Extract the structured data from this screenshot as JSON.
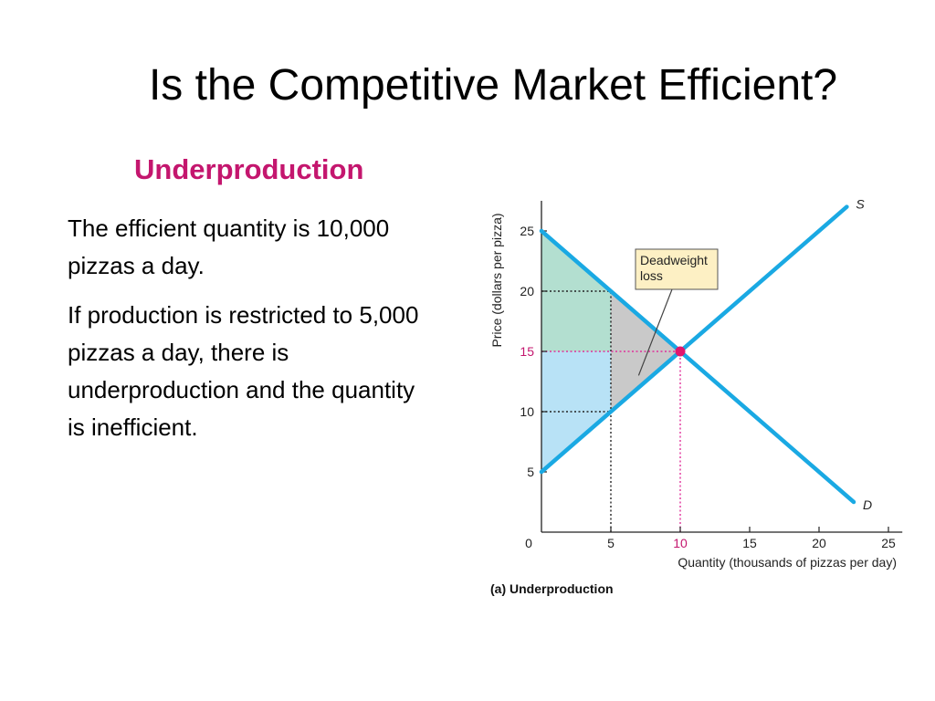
{
  "slide": {
    "title": "Is the Competitive Market Efficient?",
    "subtitle": "Underproduction",
    "paragraphs": [
      "The efficient quantity is 10,000 pizzas a day.",
      "If production is restricted to 5,000 pizzas a day, there is underproduction and the quantity is inefficient."
    ]
  },
  "chart_data": {
    "type": "line",
    "caption": "(a) Underproduction",
    "xlabel": "Quantity (thousands of pizzas per day)",
    "ylabel": "Price (dollars per pizza)",
    "xlim": [
      0,
      26
    ],
    "ylim": [
      0,
      27.5
    ],
    "x_ticks": [
      0,
      5,
      10,
      15,
      20,
      25
    ],
    "y_ticks": [
      5,
      10,
      15,
      20,
      25
    ],
    "highlight_tick": {
      "x": 10,
      "y": 15
    },
    "series": [
      {
        "name": "S",
        "points": [
          [
            0,
            5
          ],
          [
            22,
            27
          ]
        ]
      },
      {
        "name": "D",
        "points": [
          [
            0,
            25
          ],
          [
            22.5,
            2.5
          ]
        ]
      }
    ],
    "equilibrium": {
      "x": 10,
      "y": 15
    },
    "restricted_quantity": 5,
    "guides": [
      {
        "from": [
          0,
          20
        ],
        "to": [
          5,
          20
        ],
        "style": "dotted",
        "color": "#222222"
      },
      {
        "from": [
          0,
          10
        ],
        "to": [
          5,
          10
        ],
        "style": "dotted",
        "color": "#222222"
      },
      {
        "from": [
          5,
          0
        ],
        "to": [
          5,
          20
        ],
        "style": "dotted",
        "color": "#222222"
      },
      {
        "from": [
          0,
          15
        ],
        "to": [
          10,
          15
        ],
        "style": "dotted",
        "color": "#e0309a"
      },
      {
        "from": [
          10,
          0
        ],
        "to": [
          10,
          15
        ],
        "style": "dotted",
        "color": "#e0309a"
      }
    ],
    "regions": [
      {
        "name": "consumer-surplus",
        "color": "#b3dfd0",
        "points": [
          [
            0,
            25
          ],
          [
            5,
            20
          ],
          [
            0,
            20
          ]
        ]
      },
      {
        "name": "consumer-surplus",
        "color": "#b3dfd0",
        "points": [
          [
            0,
            20
          ],
          [
            5,
            20
          ],
          [
            5,
            15
          ],
          [
            0,
            15
          ]
        ]
      },
      {
        "name": "producer-surplus",
        "color": "#b8e2f6",
        "points": [
          [
            0,
            15
          ],
          [
            5,
            15
          ],
          [
            5,
            10
          ],
          [
            0,
            10
          ]
        ]
      },
      {
        "name": "producer-surplus",
        "color": "#b8e2f6",
        "points": [
          [
            0,
            10
          ],
          [
            5,
            10
          ],
          [
            0,
            5
          ]
        ]
      },
      {
        "name": "deadweight-loss",
        "color": "#c9c9c9",
        "points": [
          [
            5,
            20
          ],
          [
            10,
            15
          ],
          [
            5,
            10
          ]
        ]
      }
    ],
    "callout": {
      "lines": [
        "Deadweight",
        "loss"
      ],
      "fill": "#fdf0c4",
      "anchor": [
        7,
        13
      ]
    },
    "colors": {
      "curves": "#1aa9e3",
      "equilibrium": "#e0166e",
      "highlight": "#c4166e"
    }
  }
}
